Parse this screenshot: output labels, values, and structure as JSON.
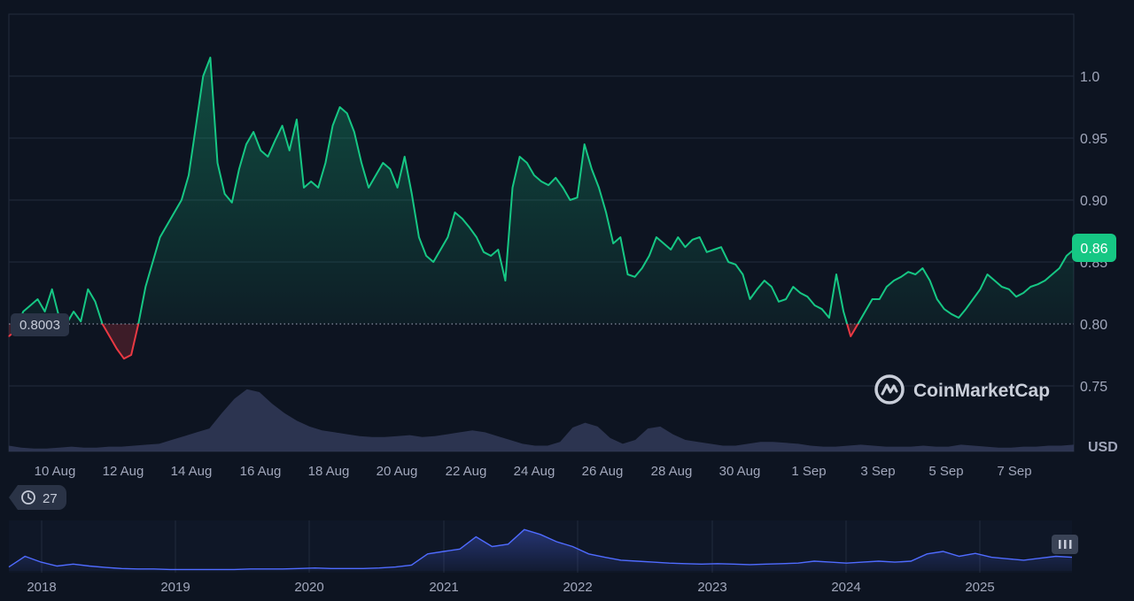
{
  "colors": {
    "background": "#0d1421",
    "up_line": "#16c784",
    "down_line": "#ea3943",
    "volume": "#323a58",
    "navigator_line": "#4f6bff",
    "grid": "#222b3d",
    "text": "#a1a7bb",
    "badge_bg": "#16c784"
  },
  "brand": {
    "name": "CoinMarketCap",
    "icon": "coinmarketcap-logo-icon"
  },
  "history_button": {
    "icon": "history-clock-icon",
    "label": "27"
  },
  "pause_button": {
    "icon": "pause-icon"
  },
  "chart_data": [
    {
      "type": "line",
      "y_axis": {
        "ticks": [
          "1.0",
          "0.95",
          "0.90",
          "0.85",
          "0.80",
          "0.75"
        ],
        "ylim": [
          0.7,
          1.05
        ],
        "unit_label": "USD",
        "position": "right"
      },
      "x_tick_labels": [
        "10 Aug",
        "12 Aug",
        "14 Aug",
        "16 Aug",
        "18 Aug",
        "20 Aug",
        "22 Aug",
        "24 Aug",
        "26 Aug",
        "28 Aug",
        "30 Aug",
        "1 Sep",
        "3 Sep",
        "5 Sep",
        "7 Sep"
      ],
      "reference_line": {
        "value": 0.8003,
        "label": "0.8003",
        "style": "dotted"
      },
      "current_price": {
        "value": 0.86,
        "label": "0.86"
      },
      "grid": true,
      "series": [
        {
          "values": [
            0.79,
            0.795,
            0.81,
            0.815,
            0.82,
            0.81,
            0.828,
            0.805,
            0.8,
            0.81,
            0.802,
            0.828,
            0.818,
            0.8,
            0.79,
            0.78,
            0.772,
            0.775,
            0.8,
            0.83,
            0.85,
            0.87,
            0.88,
            0.89,
            0.9,
            0.92,
            0.96,
            1.0,
            1.015,
            0.93,
            0.905,
            0.898,
            0.925,
            0.945,
            0.955,
            0.94,
            0.935,
            0.948,
            0.96,
            0.94,
            0.965,
            0.91,
            0.915,
            0.91,
            0.93,
            0.96,
            0.975,
            0.97,
            0.955,
            0.93,
            0.91,
            0.92,
            0.93,
            0.925,
            0.91,
            0.935,
            0.905,
            0.87,
            0.855,
            0.85,
            0.86,
            0.87,
            0.89,
            0.885,
            0.878,
            0.87,
            0.858,
            0.855,
            0.86,
            0.835,
            0.91,
            0.935,
            0.93,
            0.92,
            0.915,
            0.912,
            0.918,
            0.91,
            0.9,
            0.902,
            0.945,
            0.925,
            0.91,
            0.89,
            0.865,
            0.87,
            0.84,
            0.838,
            0.845,
            0.855,
            0.87,
            0.865,
            0.86,
            0.87,
            0.862,
            0.868,
            0.87,
            0.858,
            0.86,
            0.862,
            0.85,
            0.848,
            0.84,
            0.82,
            0.828,
            0.835,
            0.83,
            0.818,
            0.82,
            0.83,
            0.825,
            0.822,
            0.815,
            0.812,
            0.805,
            0.84,
            0.81,
            0.79,
            0.8,
            0.81,
            0.82,
            0.82,
            0.83,
            0.835,
            0.838,
            0.842,
            0.84,
            0.845,
            0.835,
            0.82,
            0.812,
            0.808,
            0.805,
            0.812,
            0.82,
            0.828,
            0.84,
            0.835,
            0.83,
            0.828,
            0.822,
            0.825,
            0.83,
            0.832,
            0.835,
            0.84,
            0.845,
            0.855,
            0.86
          ]
        }
      ],
      "volume": [
        0.06,
        0.04,
        0.03,
        0.03,
        0.04,
        0.05,
        0.04,
        0.04,
        0.05,
        0.05,
        0.06,
        0.07,
        0.08,
        0.12,
        0.16,
        0.2,
        0.24,
        0.4,
        0.55,
        0.65,
        0.62,
        0.5,
        0.4,
        0.32,
        0.26,
        0.22,
        0.2,
        0.18,
        0.16,
        0.15,
        0.15,
        0.16,
        0.17,
        0.15,
        0.16,
        0.18,
        0.2,
        0.22,
        0.2,
        0.16,
        0.12,
        0.08,
        0.06,
        0.06,
        0.1,
        0.25,
        0.3,
        0.26,
        0.14,
        0.08,
        0.12,
        0.24,
        0.26,
        0.18,
        0.12,
        0.1,
        0.08,
        0.06,
        0.06,
        0.08,
        0.1,
        0.1,
        0.09,
        0.08,
        0.06,
        0.05,
        0.05,
        0.06,
        0.07,
        0.06,
        0.05,
        0.05,
        0.05,
        0.06,
        0.05,
        0.05,
        0.07,
        0.06,
        0.05,
        0.04,
        0.04,
        0.05,
        0.05,
        0.06,
        0.06,
        0.07
      ]
    },
    {
      "type": "area",
      "x_tick_labels": [
        "2018",
        "2019",
        "2020",
        "2021",
        "2022",
        "2023",
        "2024",
        "2025"
      ],
      "series": [
        {
          "values": [
            0.08,
            0.3,
            0.18,
            0.1,
            0.14,
            0.1,
            0.07,
            0.05,
            0.04,
            0.04,
            0.03,
            0.03,
            0.03,
            0.03,
            0.03,
            0.04,
            0.04,
            0.04,
            0.05,
            0.06,
            0.05,
            0.05,
            0.05,
            0.06,
            0.08,
            0.12,
            0.35,
            0.4,
            0.45,
            0.7,
            0.5,
            0.55,
            0.85,
            0.75,
            0.6,
            0.5,
            0.35,
            0.28,
            0.22,
            0.2,
            0.18,
            0.16,
            0.15,
            0.14,
            0.15,
            0.14,
            0.13,
            0.14,
            0.15,
            0.16,
            0.2,
            0.18,
            0.16,
            0.18,
            0.2,
            0.18,
            0.2,
            0.35,
            0.4,
            0.3,
            0.36,
            0.28,
            0.25,
            0.22,
            0.26,
            0.3,
            0.28
          ]
        }
      ]
    }
  ]
}
